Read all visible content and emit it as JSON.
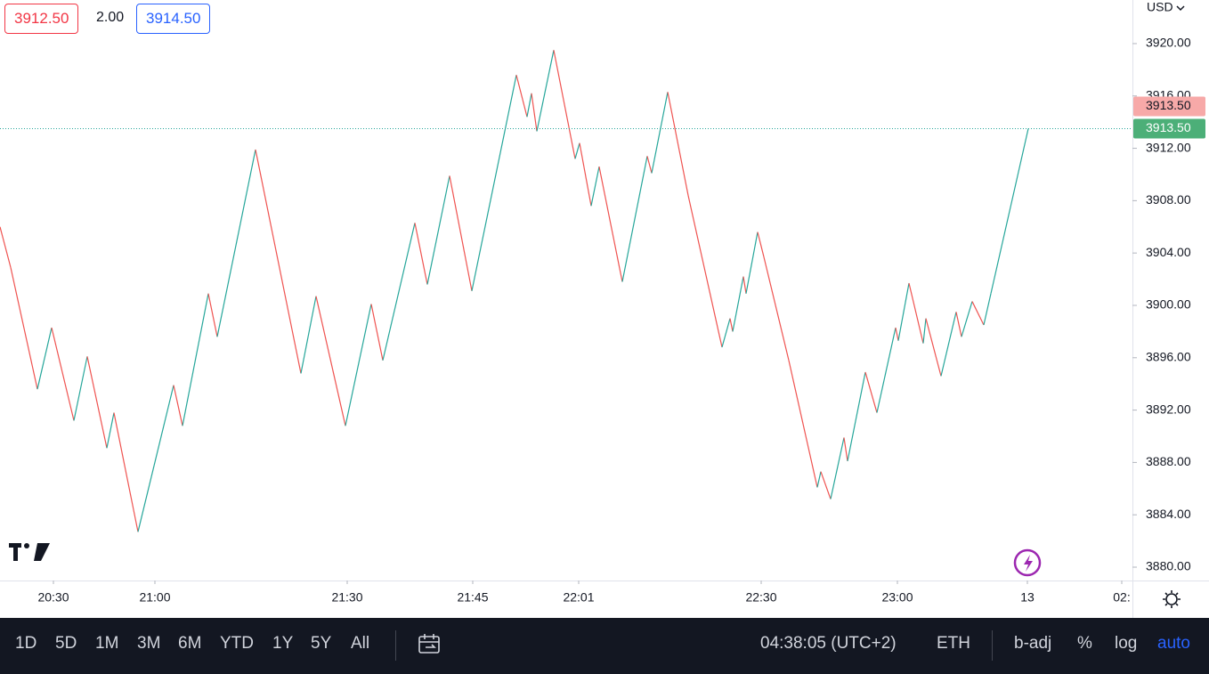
{
  "header": {
    "bid": "3912.50",
    "spread": "2.00",
    "ask": "3914.50"
  },
  "currency": "USD",
  "toolbar": {
    "ranges": [
      "1D",
      "5D",
      "1M",
      "3M",
      "6M",
      "YTD",
      "1Y",
      "5Y",
      "All"
    ],
    "clock": "04:38:05 (UTC+2)",
    "session": "ETH",
    "options": [
      "b-adj",
      "%",
      "log",
      "auto"
    ]
  },
  "chart_data": {
    "type": "line",
    "x": [
      0,
      3,
      10.5,
      14.5,
      20.75,
      24.5,
      30,
      32,
      38.75,
      48.75,
      51.25,
      58.5,
      61,
      71.75,
      84.5,
      88.75,
      97,
      104.25,
      107.5,
      116.5,
      120,
      126.25,
      132.5,
      145,
      148,
      149.25,
      150.75,
      155.5,
      161.5,
      162.75,
      166,
      168.25,
      174.75,
      181.75,
      183,
      187.5,
      193.25,
      202.75,
      205,
      205.75,
      208.75,
      209.5,
      212.75,
      214.5,
      221.5,
      229.5,
      230.5,
      233.25,
      237,
      238,
      243,
      246.25,
      251.5,
      252.25,
      255.25,
      259.25,
      260,
      264.25,
      268.5,
      270,
      273,
      276.25,
      278.25,
      288.75
    ],
    "series": [
      {
        "up_color": "#26a69a",
        "down_color": "#ef5350",
        "values": [
          3906.0,
          3902.9,
          3893.6,
          3898.3,
          3891.2,
          3896.1,
          3889.1,
          3891.8,
          3882.7,
          3893.9,
          3890.8,
          3900.9,
          3897.6,
          3911.9,
          3894.8,
          3900.7,
          3890.8,
          3900.1,
          3895.8,
          3906.3,
          3901.6,
          3909.9,
          3901.1,
          3917.6,
          3914.4,
          3916.2,
          3913.3,
          3919.5,
          3911.2,
          3912.4,
          3907.6,
          3910.6,
          3901.8,
          3911.4,
          3910.1,
          3916.3,
          3908.4,
          3896.8,
          3899.0,
          3898.0,
          3902.2,
          3900.9,
          3905.6,
          3903.7,
          3895.8,
          3886.1,
          3887.3,
          3885.2,
          3889.9,
          3888.1,
          3894.9,
          3891.8,
          3898.3,
          3897.3,
          3901.7,
          3897.1,
          3899.0,
          3894.6,
          3899.5,
          3897.6,
          3900.3,
          3898.5,
          3900.9,
          3913.5
        ]
      }
    ],
    "xlim": [
      0,
      318
    ],
    "xticks": [
      {
        "value": 15,
        "label": "20:30"
      },
      {
        "value": 43.5,
        "label": "21:00"
      },
      {
        "value": 97.5,
        "label": "21:30"
      },
      {
        "value": 132.75,
        "label": "21:45"
      },
      {
        "value": 162.5,
        "label": "22:01"
      },
      {
        "value": 213.75,
        "label": "22:30"
      },
      {
        "value": 252,
        "label": "23:00"
      },
      {
        "value": 288.5,
        "label": "13"
      },
      {
        "value": 315,
        "label": "02:"
      }
    ],
    "ylim": [
      3878.98,
      3923.33
    ],
    "yticks": [
      {
        "value": 3880,
        "label": "3880.00"
      },
      {
        "value": 3884,
        "label": "3884.00"
      },
      {
        "value": 3888,
        "label": "3888.00"
      },
      {
        "value": 3892,
        "label": "3892.00"
      },
      {
        "value": 3896,
        "label": "3896.00"
      },
      {
        "value": 3900,
        "label": "3900.00"
      },
      {
        "value": 3904,
        "label": "3904.00"
      },
      {
        "value": 3908,
        "label": "3908.00"
      },
      {
        "value": 3912,
        "label": "3912.00"
      },
      {
        "value": 3916,
        "label": "3916.00"
      },
      {
        "value": 3920,
        "label": "3920.00"
      }
    ],
    "price_tags": [
      "3913.50",
      "3913.50"
    ]
  }
}
